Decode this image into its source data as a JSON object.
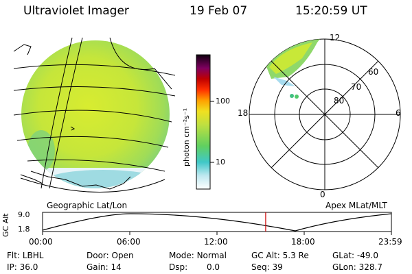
{
  "header": {
    "instrument": "Ultraviolet Imager",
    "date": "19 Feb 07",
    "time": "15:20:59 UT"
  },
  "colorbar": {
    "unit": "photon cm⁻²s⁻¹",
    "ticks": [
      "100",
      "10"
    ]
  },
  "polar": {
    "mlt_top": "12",
    "mlt_left": "18",
    "mlt_right": "6",
    "mlt_bottom": "0",
    "lat_rings": [
      "60",
      "70",
      "80"
    ]
  },
  "captions": {
    "left": "Geographic Lat/Lon",
    "right": "Apex MLat/MLT"
  },
  "altitude_plot": {
    "ylabel": "GC Alt",
    "y_ticks": [
      "9.0",
      "1.8"
    ],
    "x_ticks": [
      "00:00",
      "06:00",
      "12:00",
      "18:00",
      "23:59"
    ],
    "current_time_fraction": 0.6396
  },
  "info": {
    "row1": [
      {
        "label": "Flt:",
        "value": "LBHL"
      },
      {
        "label": "Door:",
        "value": "Open"
      },
      {
        "label": "Mode:",
        "value": "Normal"
      },
      {
        "label": "GC Alt:",
        "value": "5.3 Re"
      },
      {
        "label": "GLat:",
        "value": "-49.0"
      }
    ],
    "row2": [
      {
        "label": "IP:",
        "value": "36.0"
      },
      {
        "label": "Gain:",
        "value": "14"
      },
      {
        "label": "Dsp:",
        "value": "0.0"
      },
      {
        "label": "Seq:",
        "value": "39"
      },
      {
        "label": "GLon:",
        "value": "328.7"
      }
    ]
  },
  "colors": {
    "trace": "#000000",
    "current_marker": "#cc0000"
  }
}
